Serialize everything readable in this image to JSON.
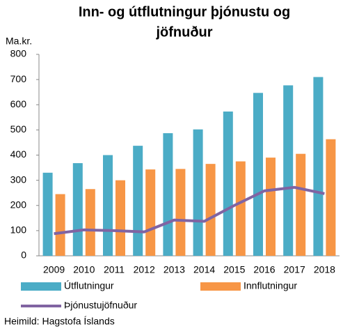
{
  "chart_data": {
    "type": "bar",
    "title": [
      "Inn- og útflutningur þjónustu og",
      "jöfnuður"
    ],
    "y_label": "Ma.kr.",
    "source": "Heimild: Hagstofa Íslands",
    "categories": [
      "2009",
      "2010",
      "2011",
      "2012",
      "2013",
      "2014",
      "2015",
      "2016",
      "2017",
      "2018"
    ],
    "series": [
      {
        "name": "Útflutningur",
        "color": "#4bacc6",
        "values": [
          330,
          368,
          400,
          437,
          487,
          502,
          573,
          647,
          677,
          710
        ]
      },
      {
        "name": "Innflutningur",
        "color": "#f79646",
        "values": [
          245,
          265,
          300,
          343,
          345,
          365,
          375,
          390,
          405,
          463
        ]
      },
      {
        "name": "Þjónustujöfnuður",
        "color": "#8064a2",
        "type": "line",
        "values": [
          88,
          103,
          100,
          95,
          142,
          137,
          200,
          258,
          272,
          247
        ]
      }
    ],
    "ylim": [
      0,
      800
    ],
    "yticks": [
      0,
      100,
      200,
      300,
      400,
      500,
      600,
      700,
      800
    ]
  }
}
